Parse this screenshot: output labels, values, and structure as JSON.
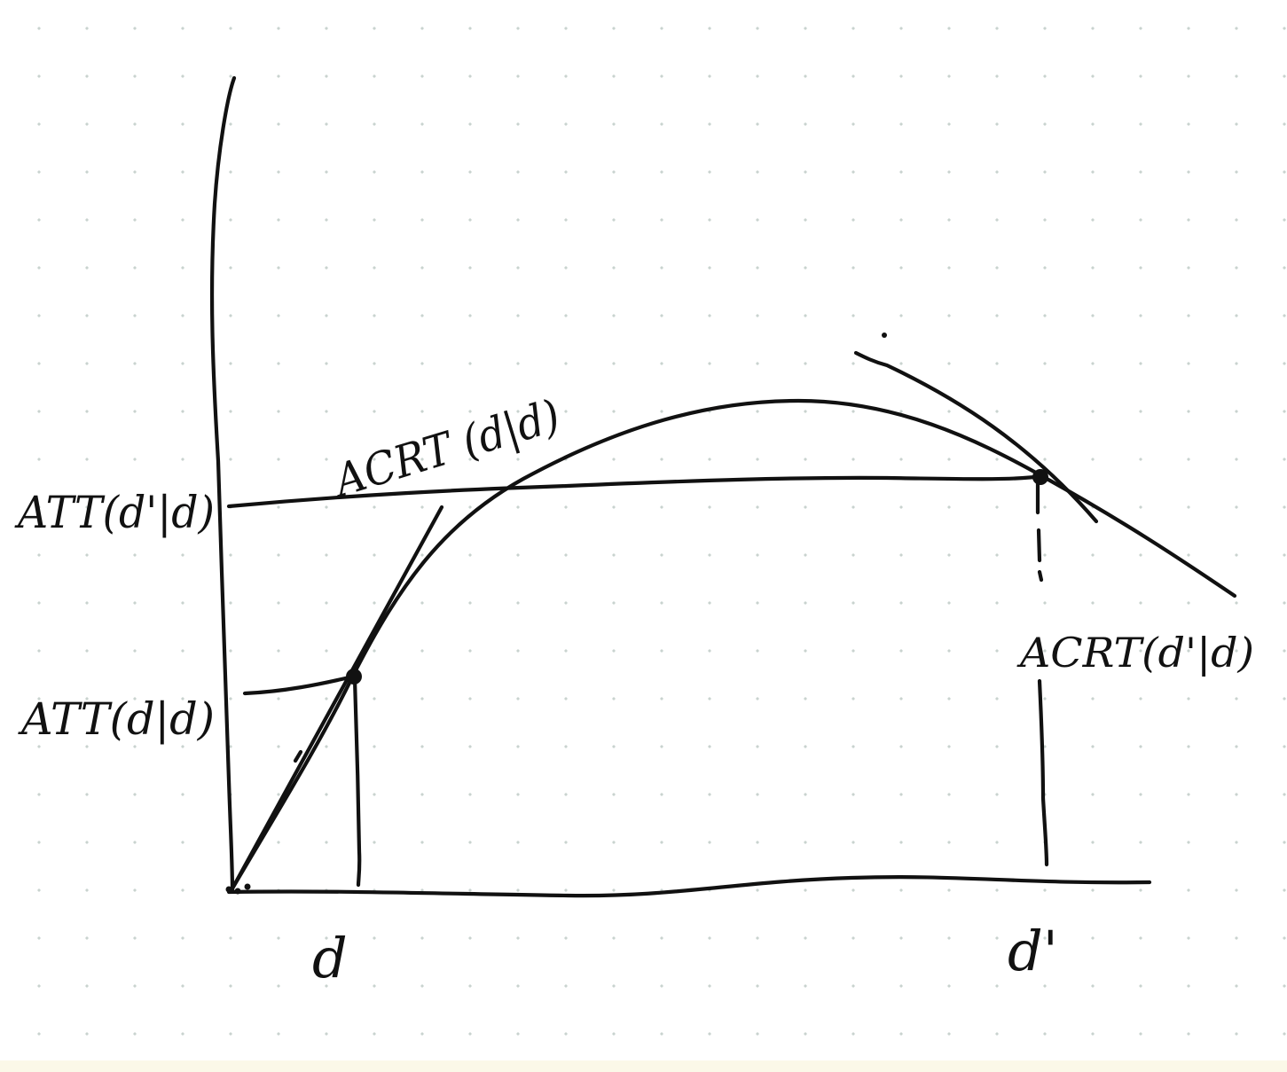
{
  "labels": {
    "att_dprime_given_d": "ATT(d'|d)",
    "att_d_given_d": "ATT(d|d)",
    "acrt_d_given_d": "ACRT (d|d)",
    "acrt_dprime_given_d": "ACRT(d'|d)",
    "x_tick_d": "d",
    "x_tick_dprime": "d'"
  }
}
